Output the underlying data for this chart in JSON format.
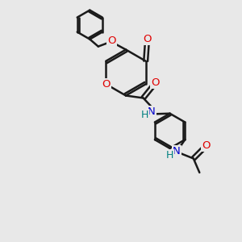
{
  "background_color": "#e8e8e8",
  "bond_color": "#1a1a1a",
  "bond_width": 1.8,
  "atom_colors": {
    "O": "#e00000",
    "N": "#0000cc",
    "H_N": "#008080",
    "C": "#1a1a1a"
  },
  "font_size_atom": 9.5,
  "fig_size": [
    3.0,
    3.0
  ],
  "dpi": 100
}
